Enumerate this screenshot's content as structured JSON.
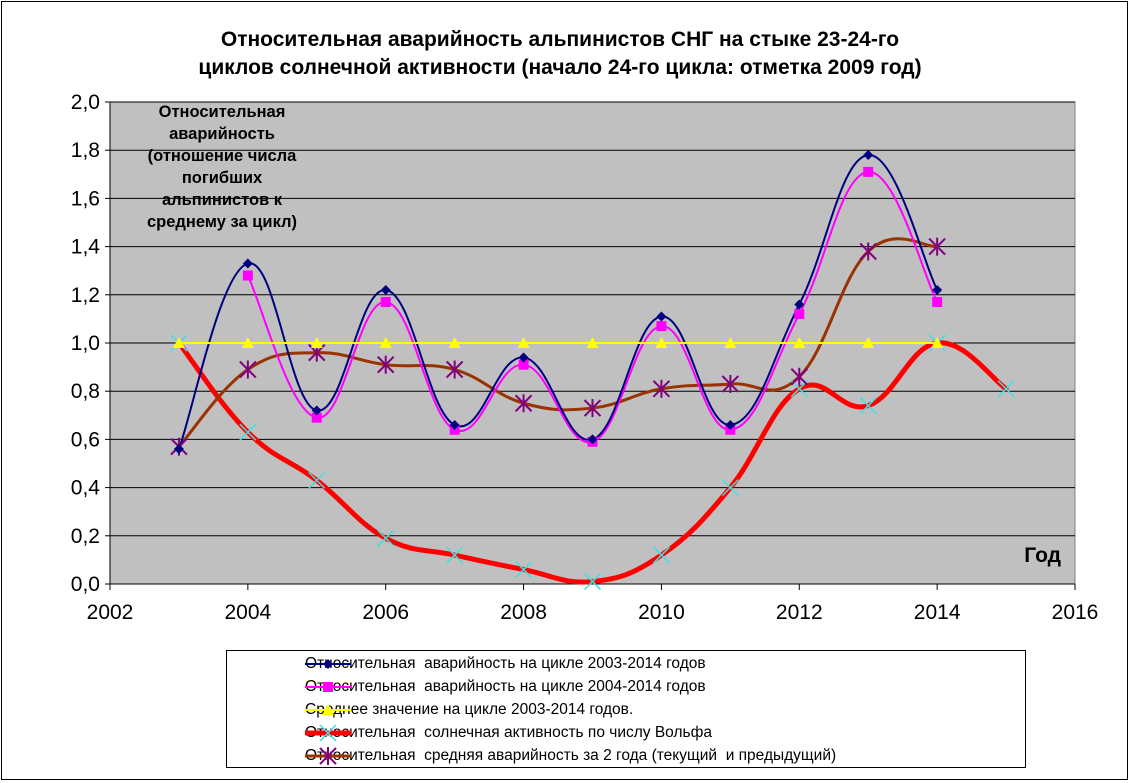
{
  "chart_data": {
    "type": "line",
    "title": "Относительная аварийность альпинистов СНГ на стыке 23-24-го\nциклов солнечной активности (начало 24-го цикла: отметка 2009 год)",
    "ylabel": "Относительная аварийность (отношение числа погибших альпинистов к среднему за цикл)",
    "ylabel_lines": [
      "Относительная",
      "аварийность",
      "(отношение числа",
      "погибших",
      "альпинистов к",
      "среднему за цикл)"
    ],
    "xlabel": "Год",
    "xlim": [
      2002,
      2016
    ],
    "ylim": [
      0,
      2
    ],
    "x_ticks": [
      2002,
      2004,
      2006,
      2008,
      2010,
      2012,
      2014,
      2016
    ],
    "y_ticks": [
      0,
      0.2,
      0.4,
      0.6,
      0.8,
      1.0,
      1.2,
      1.4,
      1.6,
      1.8,
      2.0
    ],
    "y_tick_labels": [
      "0,0",
      "0,2",
      "0,4",
      "0,6",
      "0,8",
      "1,0",
      "1,2",
      "1,4",
      "1,6",
      "1,8",
      "2,0"
    ],
    "grid": "horizontal",
    "plot_background": "#c0c0c0",
    "legend_position": "bottom",
    "series": [
      {
        "name": "Относительная аварийность на цикле 2003-2014 годов",
        "color": "#000080",
        "marker": "diamond",
        "marker_color": "#000080",
        "width": 2,
        "x": [
          2003,
          2004,
          2005,
          2006,
          2007,
          2008,
          2009,
          2010,
          2011,
          2012,
          2013,
          2014
        ],
        "y": [
          0.56,
          1.33,
          0.72,
          1.22,
          0.66,
          0.94,
          0.6,
          1.11,
          0.66,
          1.16,
          1.78,
          1.22
        ]
      },
      {
        "name": "Относительная аварийность на цикле 2004-2014 годов",
        "color": "#ff00ff",
        "marker": "square",
        "marker_color": "#ff00ff",
        "width": 2,
        "x": [
          2004,
          2005,
          2006,
          2007,
          2008,
          2009,
          2010,
          2011,
          2012,
          2013,
          2014
        ],
        "y": [
          1.28,
          0.69,
          1.17,
          0.64,
          0.91,
          0.59,
          1.07,
          0.64,
          1.12,
          1.71,
          1.17
        ]
      },
      {
        "name": "Среднее значение на цикле 2003-2014 годов.",
        "color": "#ffff00",
        "marker": "triangle",
        "marker_color": "#ffff00",
        "width": 2,
        "x": [
          2003,
          2004,
          2005,
          2006,
          2007,
          2008,
          2009,
          2010,
          2011,
          2012,
          2013,
          2014
        ],
        "y": [
          1.0,
          1.0,
          1.0,
          1.0,
          1.0,
          1.0,
          1.0,
          1.0,
          1.0,
          1.0,
          1.0,
          1.0
        ]
      },
      {
        "name": "Относительная  солнечная активность по числу Вольфа",
        "color": "#ff0000",
        "marker": "x",
        "marker_color": "#40e0e0",
        "width": 5,
        "x": [
          2003,
          2004,
          2005,
          2006,
          2007,
          2008,
          2009,
          2010,
          2011,
          2012,
          2013,
          2014,
          2015
        ],
        "y": [
          1.0,
          0.63,
          0.43,
          0.19,
          0.12,
          0.06,
          0.01,
          0.12,
          0.4,
          0.81,
          0.74,
          1.0,
          0.81
        ]
      },
      {
        "name": "Относительная  средняя аварийность за 2 года (текущий  и предыдущий)",
        "color": "#993300",
        "marker": "asterisk",
        "marker_color": "#800080",
        "width": 3,
        "x": [
          2003,
          2004,
          2005,
          2006,
          2007,
          2008,
          2009,
          2010,
          2011,
          2012,
          2013,
          2014
        ],
        "y": [
          0.57,
          0.89,
          0.96,
          0.91,
          0.89,
          0.75,
          0.73,
          0.81,
          0.83,
          0.86,
          1.38,
          1.4
        ]
      }
    ]
  },
  "legend": {
    "items": [
      "Относительная  аварийность на цикле 2003-2014 годов",
      "Относительная  аварийность на цикле 2004-2014 годов",
      "Среднее значение на цикле 2003-2014 годов.",
      "Относительная  солнечная активность по числу Вольфа",
      "Относительная  средняя аварийность за 2 года (текущий  и предыдущий)"
    ]
  }
}
